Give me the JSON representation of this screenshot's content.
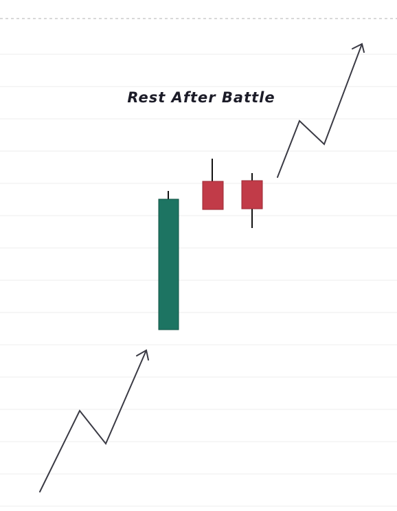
{
  "title": "Rest After Battle"
}
